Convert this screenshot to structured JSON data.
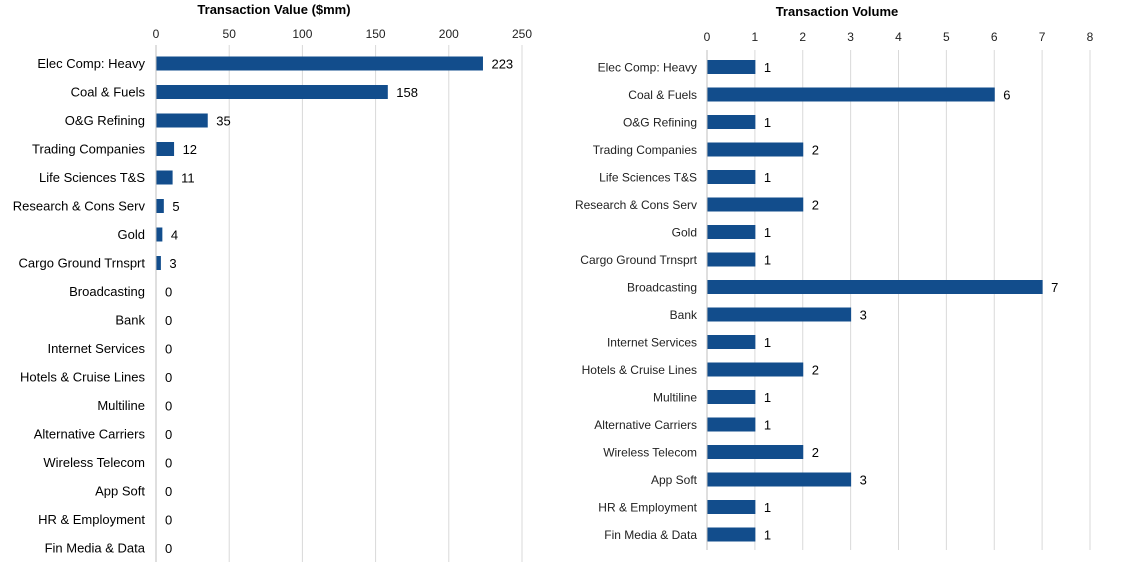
{
  "chart_data": [
    {
      "type": "bar",
      "orientation": "horizontal",
      "title": "Transaction Value ($mm)",
      "xlim": [
        0,
        250
      ],
      "ticks": [
        0,
        50,
        100,
        150,
        200,
        250
      ],
      "categories": [
        "Elec Comp: Heavy",
        "Coal & Fuels",
        "O&G Refining",
        "Trading Companies",
        "Life Sciences T&S",
        "Research & Cons Serv",
        "Gold",
        "Cargo Ground Trnsprt",
        "Broadcasting",
        "Bank",
        "Internet Services",
        "Hotels & Cruise Lines",
        "Multiline",
        "Alternative Carriers",
        "Wireless Telecom",
        "App Soft",
        "HR & Employment",
        "Fin Media & Data"
      ],
      "values": [
        223,
        158,
        35,
        12,
        11,
        5,
        4,
        3,
        0,
        0,
        0,
        0,
        0,
        0,
        0,
        0,
        0,
        0
      ],
      "bar_color": "#124d8c",
      "grid": true
    },
    {
      "type": "bar",
      "orientation": "horizontal",
      "title": "Transaction Volume",
      "xlim": [
        0,
        8
      ],
      "ticks": [
        0,
        1,
        2,
        3,
        4,
        5,
        6,
        7,
        8
      ],
      "categories": [
        "Elec Comp: Heavy",
        "Coal & Fuels",
        "O&G Refining",
        "Trading Companies",
        "Life Sciences T&S",
        "Research & Cons Serv",
        "Gold",
        "Cargo Ground Trnsprt",
        "Broadcasting",
        "Bank",
        "Internet Services",
        "Hotels & Cruise Lines",
        "Multiline",
        "Alternative Carriers",
        "Wireless Telecom",
        "App Soft",
        "HR & Employment",
        "Fin Media & Data"
      ],
      "values": [
        1,
        6,
        1,
        2,
        1,
        2,
        1,
        1,
        7,
        3,
        1,
        2,
        1,
        1,
        2,
        3,
        1,
        1
      ],
      "bar_color": "#124d8c",
      "grid": true
    }
  ]
}
